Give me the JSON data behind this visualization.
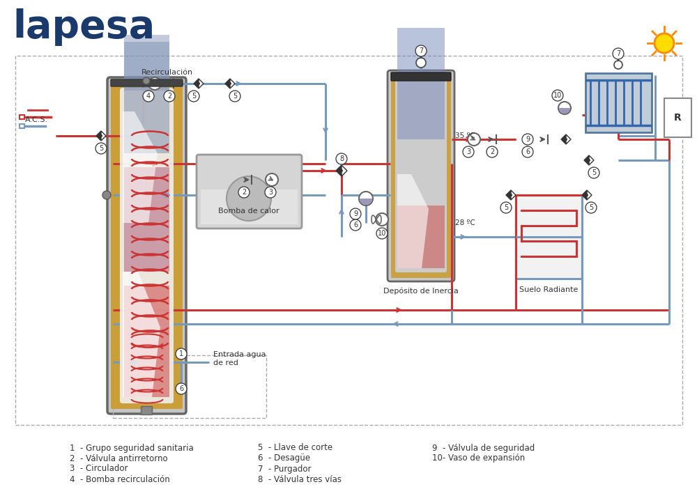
{
  "background_color": "#ffffff",
  "title": "lapesa",
  "title_color": "#1a3a6b",
  "fig_width": 10.0,
  "fig_height": 7.12,
  "pipe_red": "#cc3333",
  "pipe_blue": "#7799bb",
  "text_dark": "#333333",
  "solar_yellow": "#ffcc00",
  "solar_orange": "#ff8800",
  "collector_blue": "#4477aa",
  "hp_fill": "#d8d8d8",
  "hp_border": "#999999",
  "tank_outer": "#c8c8c8",
  "tank_gold": "#d4a030",
  "inertia_red": "#cc5555",
  "inertia_blue": "#6677bb",
  "inertia_gold": "#d4a030",
  "legend": [
    [
      100,
      643,
      "1  - Grupo seguridad sanitaria"
    ],
    [
      100,
      658,
      "2  - Válvula antirretorno"
    ],
    [
      100,
      673,
      "3  - Circulador"
    ],
    [
      100,
      688,
      "4  - Bomba recirculación"
    ],
    [
      370,
      643,
      "5  - Llave de corte"
    ],
    [
      370,
      658,
      "6  - Desagüe"
    ],
    [
      370,
      673,
      "7  - Purgador"
    ],
    [
      370,
      688,
      "8  - Válvula tres vías"
    ],
    [
      620,
      643,
      "9  - Válvula de seguridad"
    ],
    [
      620,
      658,
      "10- Vaso de expansión"
    ]
  ]
}
